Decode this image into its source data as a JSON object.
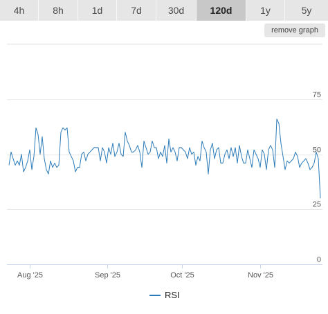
{
  "ranges": [
    {
      "label": "4h",
      "active": false
    },
    {
      "label": "8h",
      "active": false
    },
    {
      "label": "1d",
      "active": false
    },
    {
      "label": "7d",
      "active": false
    },
    {
      "label": "30d",
      "active": false
    },
    {
      "label": "120d",
      "active": true
    },
    {
      "label": "1y",
      "active": false
    },
    {
      "label": "5y",
      "active": false
    }
  ],
  "remove_graph_label": "remove graph",
  "colors": {
    "line": "#2b7bb9",
    "grid": "#e6e6e6",
    "active_tab": "#c8c8c8",
    "tab": "#e6e6e6"
  },
  "chart_data": {
    "type": "line",
    "ylim": [
      0,
      100
    ],
    "y_ticks": [
      0,
      25,
      50,
      75
    ],
    "x_range": [
      "2025-07-23",
      "2025-11-26"
    ],
    "x_ticks": [
      {
        "date": "2025-08-01",
        "label": "Aug '25"
      },
      {
        "date": "2025-09-01",
        "label": "Sep '25"
      },
      {
        "date": "2025-10-01",
        "label": "Oct '25"
      },
      {
        "date": "2025-11-01",
        "label": "Nov '25"
      }
    ],
    "grid": true,
    "legend_position": "bottom-center",
    "series": [
      {
        "name": "RSI",
        "color": "#2b7bb9",
        "values": [
          45,
          51,
          48,
          45,
          47,
          45,
          50,
          42,
          44,
          47,
          52,
          43,
          49,
          62,
          59,
          50,
          58,
          48,
          43,
          41,
          47,
          44,
          46,
          44,
          45,
          60,
          62,
          61,
          62,
          51,
          49,
          47,
          42,
          44,
          44,
          50,
          51,
          47,
          50,
          51,
          52,
          53,
          53,
          53,
          47,
          53,
          51,
          46,
          53,
          50,
          55,
          49,
          51,
          55,
          50,
          49,
          60,
          56,
          54,
          51,
          51,
          52,
          54,
          51,
          44,
          56,
          53,
          50,
          51,
          56,
          53,
          53,
          48,
          51,
          49,
          54,
          46,
          57,
          51,
          53,
          51,
          47,
          53,
          53,
          52,
          51,
          48,
          53,
          50,
          51,
          45,
          49,
          47,
          56,
          53,
          51,
          41,
          52,
          55,
          48,
          52,
          53,
          46,
          46,
          50,
          52,
          48,
          53,
          49,
          53,
          46,
          54,
          49,
          46,
          46,
          52,
          48,
          44,
          52,
          50,
          48,
          44,
          52,
          50,
          43,
          52,
          54,
          52,
          44,
          66,
          64,
          55,
          49,
          43,
          47,
          46,
          47,
          48,
          51,
          49,
          44,
          46,
          47,
          48,
          46,
          43,
          44,
          46,
          51,
          48,
          30
        ]
      }
    ],
    "legend_label": "RSI"
  }
}
